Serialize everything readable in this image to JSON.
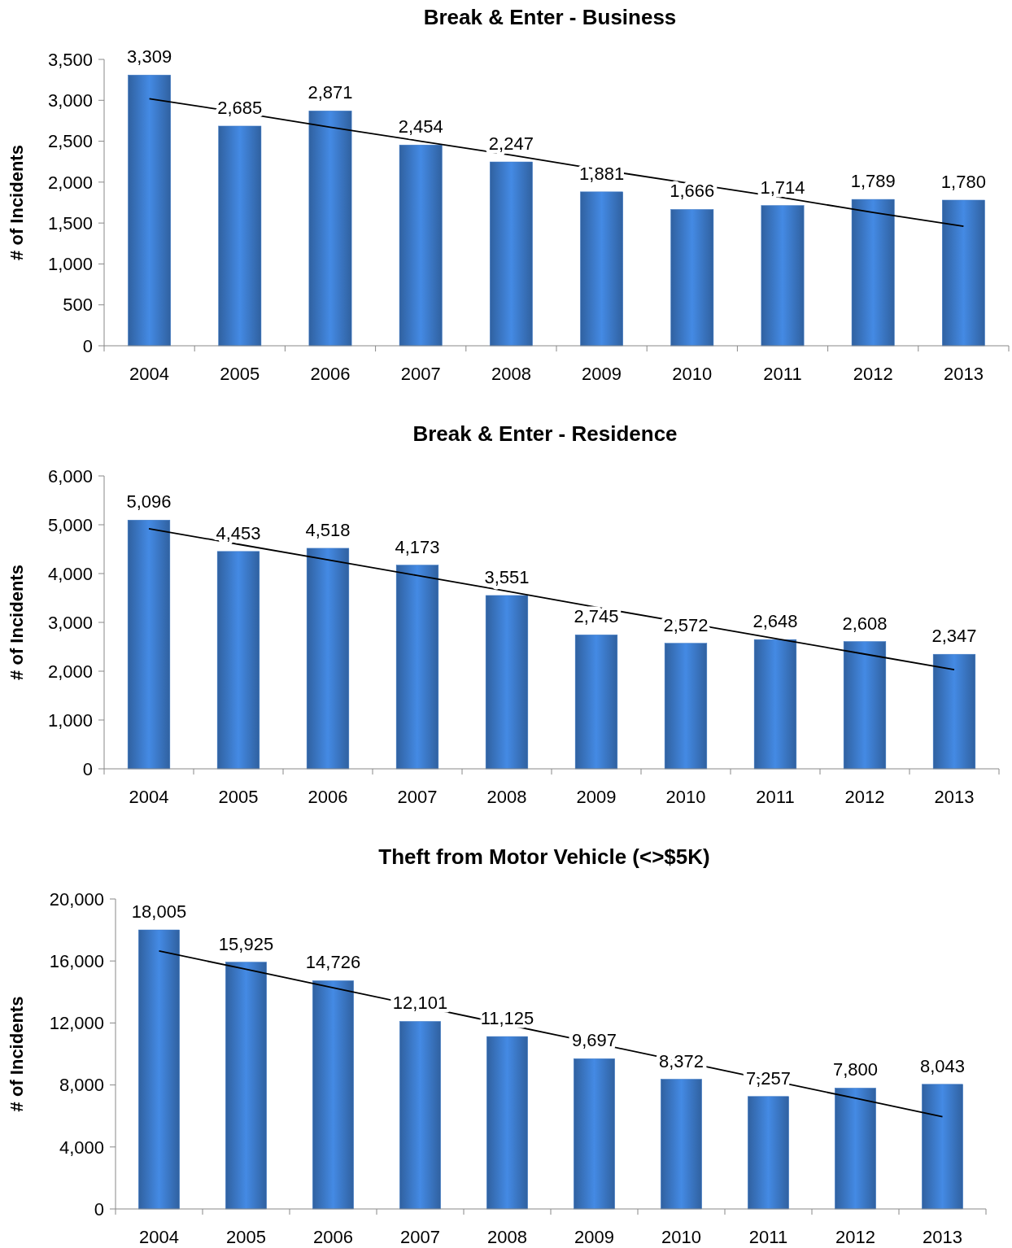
{
  "chart_data": [
    {
      "type": "bar",
      "title": "Break & Enter - Business",
      "ylabel": "# of Incidents",
      "categories": [
        "2004",
        "2005",
        "2006",
        "2007",
        "2008",
        "2009",
        "2010",
        "2011",
        "2012",
        "2013"
      ],
      "ylim": [
        0,
        3500
      ],
      "yticks": [
        {
          "value": 0,
          "label": "0"
        },
        {
          "value": 500,
          "label": "500"
        },
        {
          "value": 1000,
          "label": "1,000"
        },
        {
          "value": 1500,
          "label": "1,500"
        },
        {
          "value": 2000,
          "label": "2,000"
        },
        {
          "value": 2500,
          "label": "2,500"
        },
        {
          "value": 3000,
          "label": "3,000"
        },
        {
          "value": 3500,
          "label": "3,500"
        }
      ],
      "grid": false,
      "series": [
        {
          "type": "bar",
          "color": "#3b78c6",
          "values": [
            3309,
            2685,
            2871,
            2454,
            2247,
            1881,
            1666,
            1714,
            1789,
            1780
          ],
          "value_labels": [
            "3,309",
            "2,685",
            "2,871",
            "2,454",
            "2,247",
            "1,881",
            "1,666",
            "1,714",
            "1,789",
            "1,780"
          ]
        },
        {
          "type": "line",
          "color": "#000000",
          "values": [
            3020,
            2850,
            2670,
            2500,
            2330,
            2150,
            1980,
            1810,
            1630,
            1460
          ]
        }
      ]
    },
    {
      "type": "bar",
      "title": "Break & Enter - Residence",
      "ylabel": "# of Incidents",
      "categories": [
        "2004",
        "2005",
        "2006",
        "2007",
        "2008",
        "2009",
        "2010",
        "2011",
        "2012",
        "2013"
      ],
      "ylim": [
        0,
        6000
      ],
      "yticks": [
        {
          "value": 0,
          "label": "0"
        },
        {
          "value": 1000,
          "label": "1,000"
        },
        {
          "value": 2000,
          "label": "2,000"
        },
        {
          "value": 3000,
          "label": "3,000"
        },
        {
          "value": 4000,
          "label": "4,000"
        },
        {
          "value": 5000,
          "label": "5,000"
        },
        {
          "value": 6000,
          "label": "6,000"
        }
      ],
      "grid": false,
      "series": [
        {
          "type": "bar",
          "color": "#3b78c6",
          "values": [
            5096,
            4453,
            4518,
            4173,
            3551,
            2745,
            2572,
            2648,
            2608,
            2347
          ],
          "value_labels": [
            "5,096",
            "4,453",
            "4,518",
            "4,173",
            "3,551",
            "2,745",
            "2,572",
            "2,648",
            "2,608",
            "2,347"
          ]
        },
        {
          "type": "line",
          "color": "#000000",
          "values": [
            4920,
            4600,
            4280,
            3960,
            3640,
            3310,
            2990,
            2670,
            2350,
            2030
          ]
        }
      ]
    },
    {
      "type": "bar",
      "title": "Theft from Motor Vehicle (<>$5K)",
      "ylabel": "# of Incidents",
      "categories": [
        "2004",
        "2005",
        "2006",
        "2007",
        "2008",
        "2009",
        "2010",
        "2011",
        "2012",
        "2013"
      ],
      "ylim": [
        0,
        20000
      ],
      "yticks": [
        {
          "value": 0,
          "label": "0"
        },
        {
          "value": 4000,
          "label": "4,000"
        },
        {
          "value": 8000,
          "label": "8,000"
        },
        {
          "value": 12000,
          "label": "12,000"
        },
        {
          "value": 16000,
          "label": "16,000"
        },
        {
          "value": 20000,
          "label": "20,000"
        }
      ],
      "grid": false,
      "series": [
        {
          "type": "bar",
          "color": "#3b78c6",
          "values": [
            18005,
            15925,
            14726,
            12101,
            11125,
            9697,
            8372,
            7257,
            7800,
            8043
          ],
          "value_labels": [
            "18,005",
            "15,925",
            "14,726",
            "12,101",
            "11,125",
            "9,697",
            "8,372",
            "7,257",
            "7,800",
            "8,043"
          ]
        },
        {
          "type": "line",
          "color": "#000000",
          "values": [
            16650,
            15460,
            14270,
            13080,
            11890,
            10710,
            9520,
            8330,
            7140,
            5950
          ]
        }
      ]
    }
  ]
}
